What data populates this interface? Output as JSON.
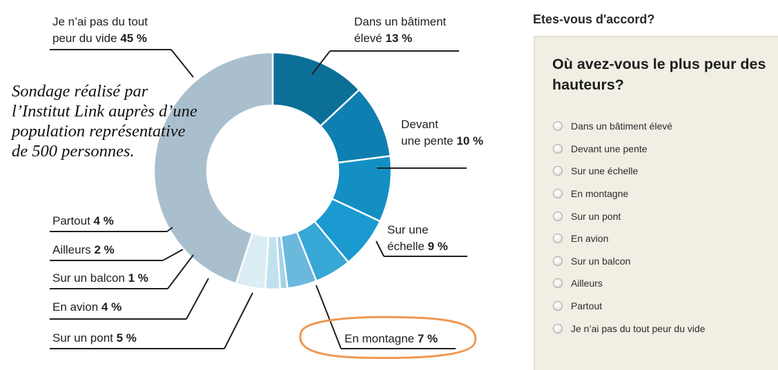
{
  "chart_data": {
    "type": "pie",
    "donut": true,
    "slices": [
      {
        "lines": [
          "Dans un bâtiment",
          "élevé"
        ],
        "pct_text": "13 %",
        "value": 13,
        "color": "#0b6f98"
      },
      {
        "lines": [
          "Devant",
          "une pente"
        ],
        "pct_text": "10 %",
        "value": 10,
        "color": "#0e7fb0"
      },
      {
        "lines": [
          "Sur une",
          "échelle"
        ],
        "pct_text": "9 %",
        "value": 9,
        "color": "#148fc3"
      },
      {
        "lines": [
          "En montagne"
        ],
        "pct_text": "7 %",
        "value": 7,
        "color": "#1a9ad0"
      },
      {
        "lines": [
          "Sur un pont"
        ],
        "pct_text": "5 %",
        "value": 5,
        "color": "#37a7d6"
      },
      {
        "lines": [
          "En avion"
        ],
        "pct_text": "4 %",
        "value": 4,
        "color": "#6ab9dd"
      },
      {
        "lines": [
          "Sur un balcon"
        ],
        "pct_text": "1 %",
        "value": 1,
        "color": "#a4d2e8"
      },
      {
        "lines": [
          "Ailleurs"
        ],
        "pct_text": "2 %",
        "value": 2,
        "color": "#c1e1ef"
      },
      {
        "lines": [
          "Partout"
        ],
        "pct_text": "4 %",
        "value": 4,
        "color": "#dbedf5"
      },
      {
        "lines": [
          "Je n’ai pas du tout",
          "peur du vide"
        ],
        "pct_text": "45 %",
        "value": 45,
        "color": "#a9bfcd"
      }
    ],
    "highlight": "En montagne",
    "highlight_color": "#f0974f"
  },
  "note": "Sondage réalisé par l’Institut Link auprès d’une population représentative de 500 personnes.",
  "poll": {
    "header": "Etes-vous d'accord?",
    "question": "Où avez-vous le plus peur des hauteurs?",
    "options": [
      "Dans un bâtiment élevé",
      "Devant une pente",
      "Sur une échelle",
      "En montagne",
      "Sur un pont",
      "En avion",
      "Sur un balcon",
      "Ailleurs",
      "Partout",
      "Je n’ai pas du tout peur du vide"
    ]
  }
}
